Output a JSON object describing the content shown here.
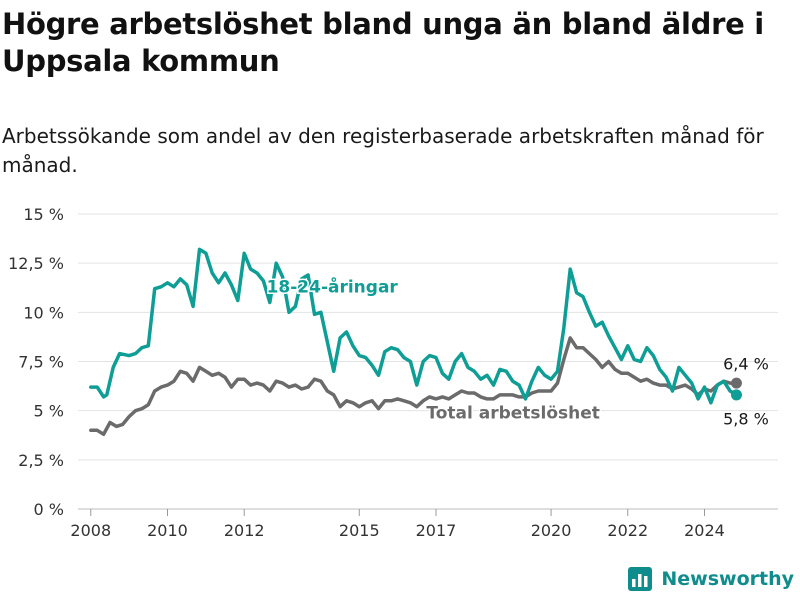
{
  "title": "Högre arbetslöshet bland unga än bland äldre i Uppsala kommun",
  "subtitle": "Arbetssökande som andel av den registerbaserade arbetskraften månad för månad.",
  "brand": {
    "name": "Newsworthy",
    "color": "#0f8c8c"
  },
  "chart_data": {
    "type": "line",
    "title": "Högre arbetslöshet bland unga än bland äldre i Uppsala kommun",
    "subtitle": "Arbetssökande som andel av den registerbaserade arbetskraften månad för månad.",
    "xlabel": "",
    "ylabel": "",
    "xlim": [
      "2007-09",
      "2025-12"
    ],
    "ylim": [
      0,
      15
    ],
    "grid": true,
    "yticks": [
      {
        "value": 0,
        "label": "0 %"
      },
      {
        "value": 2.5,
        "label": "2,5 %"
      },
      {
        "value": 5,
        "label": "5 %"
      },
      {
        "value": 7.5,
        "label": "7,5 %"
      },
      {
        "value": 10,
        "label": "10 %"
      },
      {
        "value": 12.5,
        "label": "12,5 %"
      },
      {
        "value": 15,
        "label": "15 %"
      }
    ],
    "xticks": [
      {
        "date": "2008-01",
        "label": "2008"
      },
      {
        "date": "2010-01",
        "label": "2010"
      },
      {
        "date": "2012-01",
        "label": "2012"
      },
      {
        "date": "2015-01",
        "label": "2015"
      },
      {
        "date": "2017-01",
        "label": "2017"
      },
      {
        "date": "2020-01",
        "label": "2020"
      },
      {
        "date": "2022-01",
        "label": "2022"
      },
      {
        "date": "2024-01",
        "label": "2024"
      }
    ],
    "series": [
      {
        "name": "18-24-åringar",
        "color": "#0e9e96",
        "end_label": "5,8 %",
        "points": [
          [
            "2008-01",
            6.2
          ],
          [
            "2008-03",
            6.2
          ],
          [
            "2008-05",
            5.7
          ],
          [
            "2008-06",
            5.8
          ],
          [
            "2008-08",
            7.2
          ],
          [
            "2008-10",
            7.9
          ],
          [
            "2009-01",
            7.8
          ],
          [
            "2009-03",
            7.9
          ],
          [
            "2009-05",
            8.2
          ],
          [
            "2009-07",
            8.3
          ],
          [
            "2009-09",
            11.2
          ],
          [
            "2009-11",
            11.3
          ],
          [
            "2010-01",
            11.5
          ],
          [
            "2010-03",
            11.3
          ],
          [
            "2010-05",
            11.7
          ],
          [
            "2010-07",
            11.4
          ],
          [
            "2010-09",
            10.3
          ],
          [
            "2010-11",
            13.2
          ],
          [
            "2011-01",
            13.0
          ],
          [
            "2011-03",
            12.0
          ],
          [
            "2011-05",
            11.5
          ],
          [
            "2011-07",
            12.0
          ],
          [
            "2011-09",
            11.4
          ],
          [
            "2011-11",
            10.6
          ],
          [
            "2012-01",
            13.0
          ],
          [
            "2012-03",
            12.2
          ],
          [
            "2012-05",
            12.0
          ],
          [
            "2012-07",
            11.6
          ],
          [
            "2012-09",
            10.5
          ],
          [
            "2012-11",
            12.5
          ],
          [
            "2013-01",
            11.8
          ],
          [
            "2013-03",
            10.0
          ],
          [
            "2013-05",
            10.3
          ],
          [
            "2013-07",
            11.7
          ],
          [
            "2013-09",
            11.9
          ],
          [
            "2013-11",
            9.9
          ],
          [
            "2014-01",
            10.0
          ],
          [
            "2014-03",
            8.5
          ],
          [
            "2014-05",
            7.0
          ],
          [
            "2014-07",
            8.7
          ],
          [
            "2014-09",
            9.0
          ],
          [
            "2014-11",
            8.3
          ],
          [
            "2015-01",
            7.8
          ],
          [
            "2015-03",
            7.7
          ],
          [
            "2015-05",
            7.3
          ],
          [
            "2015-07",
            6.8
          ],
          [
            "2015-09",
            8.0
          ],
          [
            "2015-11",
            8.2
          ],
          [
            "2016-01",
            8.1
          ],
          [
            "2016-03",
            7.7
          ],
          [
            "2016-05",
            7.5
          ],
          [
            "2016-07",
            6.3
          ],
          [
            "2016-09",
            7.5
          ],
          [
            "2016-11",
            7.8
          ],
          [
            "2017-01",
            7.7
          ],
          [
            "2017-03",
            6.9
          ],
          [
            "2017-05",
            6.6
          ],
          [
            "2017-07",
            7.5
          ],
          [
            "2017-09",
            7.9
          ],
          [
            "2017-11",
            7.2
          ],
          [
            "2018-01",
            7.0
          ],
          [
            "2018-03",
            6.6
          ],
          [
            "2018-05",
            6.8
          ],
          [
            "2018-07",
            6.3
          ],
          [
            "2018-09",
            7.1
          ],
          [
            "2018-11",
            7.0
          ],
          [
            "2019-01",
            6.5
          ],
          [
            "2019-03",
            6.3
          ],
          [
            "2019-05",
            5.6
          ],
          [
            "2019-07",
            6.5
          ],
          [
            "2019-09",
            7.2
          ],
          [
            "2019-11",
            6.8
          ],
          [
            "2020-01",
            6.6
          ],
          [
            "2020-03",
            7.0
          ],
          [
            "2020-05",
            9.2
          ],
          [
            "2020-07",
            12.2
          ],
          [
            "2020-09",
            11.0
          ],
          [
            "2020-11",
            10.8
          ],
          [
            "2021-01",
            10.0
          ],
          [
            "2021-03",
            9.3
          ],
          [
            "2021-05",
            9.5
          ],
          [
            "2021-07",
            8.8
          ],
          [
            "2021-09",
            8.2
          ],
          [
            "2021-11",
            7.6
          ],
          [
            "2022-01",
            8.3
          ],
          [
            "2022-03",
            7.6
          ],
          [
            "2022-05",
            7.5
          ],
          [
            "2022-07",
            8.2
          ],
          [
            "2022-09",
            7.8
          ],
          [
            "2022-11",
            7.1
          ],
          [
            "2023-01",
            6.7
          ],
          [
            "2023-03",
            6.0
          ],
          [
            "2023-05",
            7.2
          ],
          [
            "2023-07",
            6.8
          ],
          [
            "2023-09",
            6.4
          ],
          [
            "2023-11",
            5.6
          ],
          [
            "2024-01",
            6.2
          ],
          [
            "2024-03",
            5.4
          ],
          [
            "2024-05",
            6.3
          ],
          [
            "2024-07",
            6.5
          ],
          [
            "2024-09",
            6.0
          ],
          [
            "2024-11",
            5.8
          ]
        ]
      },
      {
        "name": "Total arbetslöshet",
        "color": "#6b6b6b",
        "end_label": "6,4 %",
        "points": [
          [
            "2008-01",
            4.0
          ],
          [
            "2008-03",
            4.0
          ],
          [
            "2008-05",
            3.8
          ],
          [
            "2008-07",
            4.4
          ],
          [
            "2008-09",
            4.2
          ],
          [
            "2008-11",
            4.3
          ],
          [
            "2009-01",
            4.7
          ],
          [
            "2009-03",
            5.0
          ],
          [
            "2009-05",
            5.1
          ],
          [
            "2009-07",
            5.3
          ],
          [
            "2009-09",
            6.0
          ],
          [
            "2009-11",
            6.2
          ],
          [
            "2010-01",
            6.3
          ],
          [
            "2010-03",
            6.5
          ],
          [
            "2010-05",
            7.0
          ],
          [
            "2010-07",
            6.9
          ],
          [
            "2010-09",
            6.5
          ],
          [
            "2010-11",
            7.2
          ],
          [
            "2011-01",
            7.0
          ],
          [
            "2011-03",
            6.8
          ],
          [
            "2011-05",
            6.9
          ],
          [
            "2011-07",
            6.7
          ],
          [
            "2011-09",
            6.2
          ],
          [
            "2011-11",
            6.6
          ],
          [
            "2012-01",
            6.6
          ],
          [
            "2012-03",
            6.3
          ],
          [
            "2012-05",
            6.4
          ],
          [
            "2012-07",
            6.3
          ],
          [
            "2012-09",
            6.0
          ],
          [
            "2012-11",
            6.5
          ],
          [
            "2013-01",
            6.4
          ],
          [
            "2013-03",
            6.2
          ],
          [
            "2013-05",
            6.3
          ],
          [
            "2013-07",
            6.1
          ],
          [
            "2013-09",
            6.2
          ],
          [
            "2013-11",
            6.6
          ],
          [
            "2014-01",
            6.5
          ],
          [
            "2014-03",
            6.0
          ],
          [
            "2014-05",
            5.8
          ],
          [
            "2014-07",
            5.2
          ],
          [
            "2014-09",
            5.5
          ],
          [
            "2014-11",
            5.4
          ],
          [
            "2015-01",
            5.2
          ],
          [
            "2015-03",
            5.4
          ],
          [
            "2015-05",
            5.5
          ],
          [
            "2015-07",
            5.1
          ],
          [
            "2015-09",
            5.5
          ],
          [
            "2015-11",
            5.5
          ],
          [
            "2016-01",
            5.6
          ],
          [
            "2016-03",
            5.5
          ],
          [
            "2016-05",
            5.4
          ],
          [
            "2016-07",
            5.2
          ],
          [
            "2016-09",
            5.5
          ],
          [
            "2016-11",
            5.7
          ],
          [
            "2017-01",
            5.6
          ],
          [
            "2017-03",
            5.7
          ],
          [
            "2017-05",
            5.6
          ],
          [
            "2017-07",
            5.8
          ],
          [
            "2017-09",
            6.0
          ],
          [
            "2017-11",
            5.9
          ],
          [
            "2018-01",
            5.9
          ],
          [
            "2018-03",
            5.7
          ],
          [
            "2018-05",
            5.6
          ],
          [
            "2018-07",
            5.6
          ],
          [
            "2018-09",
            5.8
          ],
          [
            "2018-11",
            5.8
          ],
          [
            "2019-01",
            5.8
          ],
          [
            "2019-03",
            5.7
          ],
          [
            "2019-05",
            5.7
          ],
          [
            "2019-07",
            5.9
          ],
          [
            "2019-09",
            6.0
          ],
          [
            "2019-11",
            6.0
          ],
          [
            "2020-01",
            6.0
          ],
          [
            "2020-03",
            6.4
          ],
          [
            "2020-05",
            7.6
          ],
          [
            "2020-07",
            8.7
          ],
          [
            "2020-09",
            8.2
          ],
          [
            "2020-11",
            8.2
          ],
          [
            "2021-01",
            7.9
          ],
          [
            "2021-03",
            7.6
          ],
          [
            "2021-05",
            7.2
          ],
          [
            "2021-07",
            7.5
          ],
          [
            "2021-09",
            7.1
          ],
          [
            "2021-11",
            6.9
          ],
          [
            "2022-01",
            6.9
          ],
          [
            "2022-03",
            6.7
          ],
          [
            "2022-05",
            6.5
          ],
          [
            "2022-07",
            6.6
          ],
          [
            "2022-09",
            6.4
          ],
          [
            "2022-11",
            6.3
          ],
          [
            "2023-01",
            6.3
          ],
          [
            "2023-03",
            6.1
          ],
          [
            "2023-05",
            6.2
          ],
          [
            "2023-07",
            6.3
          ],
          [
            "2023-09",
            6.1
          ],
          [
            "2023-11",
            5.8
          ],
          [
            "2024-01",
            6.1
          ],
          [
            "2024-03",
            6.0
          ],
          [
            "2024-05",
            6.3
          ],
          [
            "2024-07",
            6.5
          ],
          [
            "2024-09",
            6.4
          ],
          [
            "2024-11",
            6.4
          ]
        ]
      }
    ]
  }
}
